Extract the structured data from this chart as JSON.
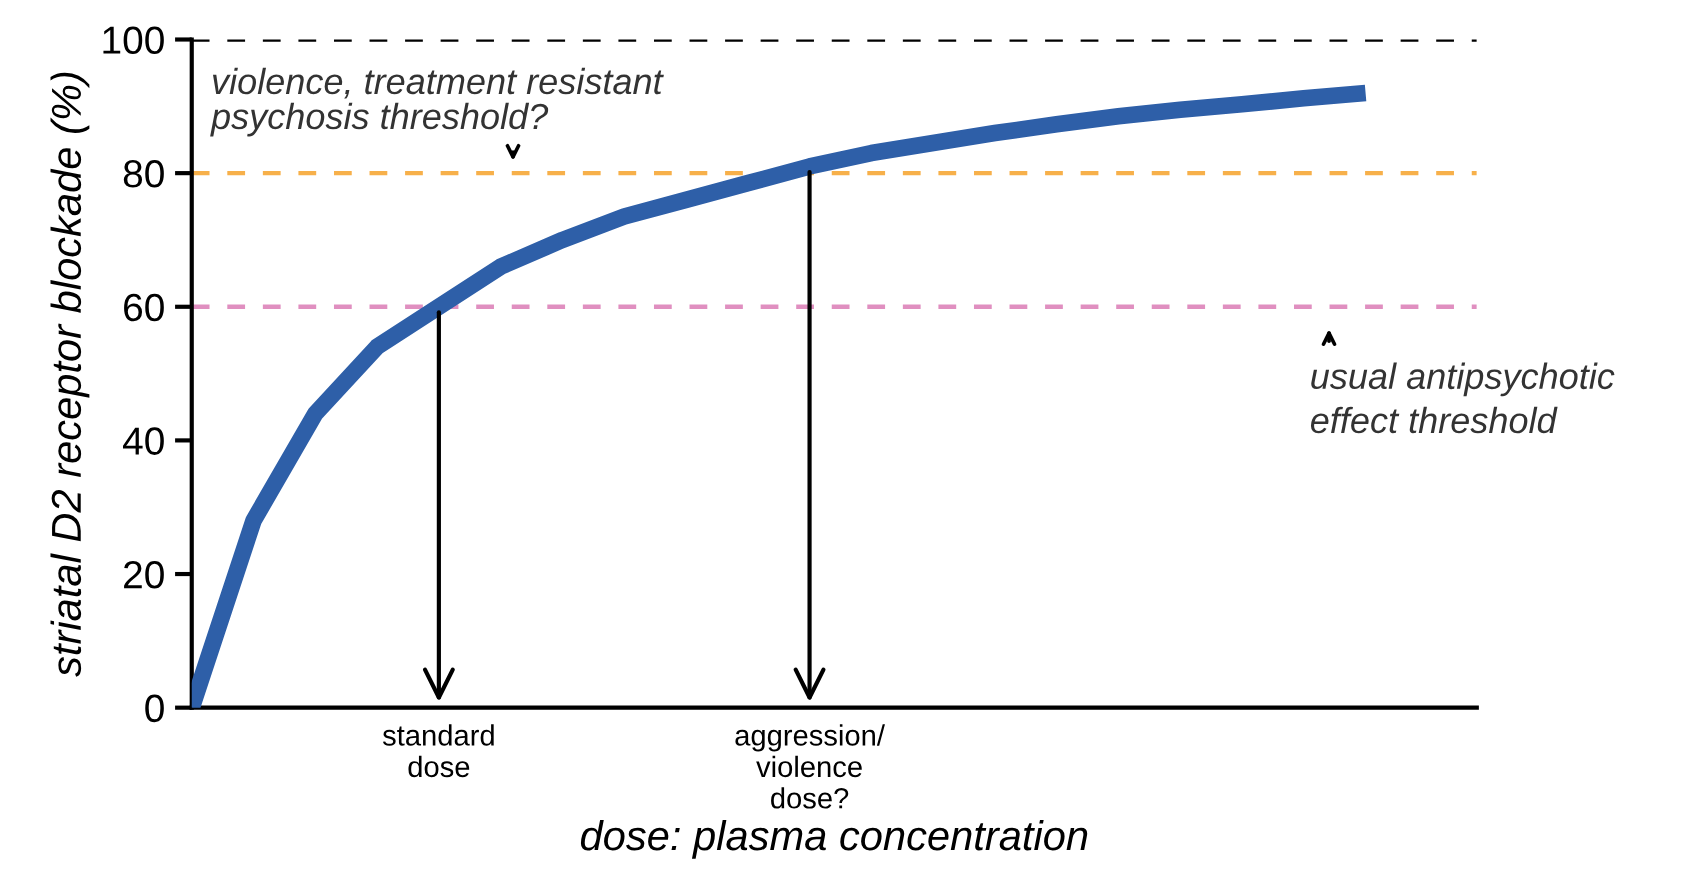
{
  "chart_data": {
    "type": "line",
    "xlabel": "dose: plasma concentration",
    "ylabel": "striatal D2 receptor blockade (%)",
    "categories": [
      null,
      null,
      null,
      null,
      "standard\ndose",
      null,
      null,
      null,
      null,
      null,
      "aggression/\nviolence\ndose?",
      null,
      null,
      null,
      null,
      null,
      null,
      null,
      null,
      null
    ],
    "series": [
      {
        "color": "#2e5fa8",
        "values": [
          0,
          28,
          44,
          54,
          60,
          66,
          70,
          73.5,
          76,
          78.5,
          81,
          83,
          84.5,
          86,
          87.3,
          88.5,
          89.5,
          90.3,
          91.2,
          92
        ]
      }
    ],
    "ylim": [
      0,
      100
    ],
    "yticks": [
      0,
      20,
      40,
      60,
      80,
      100
    ],
    "grid": false,
    "legend": false,
    "marker": "none",
    "line_style": "solid",
    "ref_lines": [
      {
        "axis": "y",
        "value": 100,
        "color": "#000000",
        "line_style": "dashed"
      },
      {
        "axis": "y",
        "value": 80,
        "color": "#f7b04a",
        "line_style": "dashed"
      },
      {
        "axis": "y",
        "value": 60,
        "color": "#e08fc0",
        "line_style": "dashed"
      }
    ],
    "annotations": [
      "violence, treatment resistant\npsychosis threshold?",
      "usual antipsychotic\neffect threshold"
    ]
  }
}
